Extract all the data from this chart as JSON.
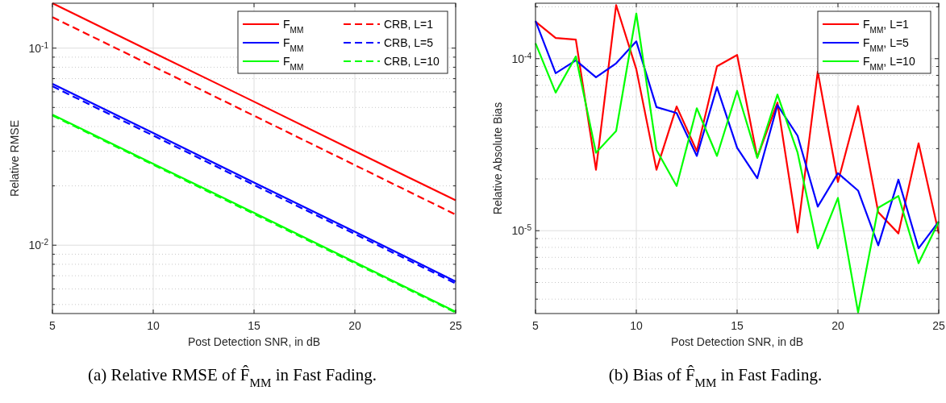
{
  "chart_data": [
    {
      "type": "line",
      "xlabel": "Post Detection SNR, in dB",
      "ylabel": "Relative RMSE",
      "log": "y",
      "grid": true,
      "legend": "top right",
      "xlim": [
        5,
        25
      ],
      "xticks": [
        5,
        10,
        15,
        20,
        25
      ],
      "ylim": [
        0.0045,
        0.169
      ],
      "yticks": [
        {
          "value": 0.005,
          "label": null
        },
        {
          "value": 0.006,
          "label": null
        },
        {
          "value": 0.007,
          "label": null
        },
        {
          "value": 0.008,
          "label": null
        },
        {
          "value": 0.009,
          "label": null
        },
        {
          "value": 0.01,
          "label": "10$^{-2}$"
        },
        {
          "value": 0.02,
          "label": null
        },
        {
          "value": 0.03,
          "label": null
        },
        {
          "value": 0.04,
          "label": null
        },
        {
          "value": 0.05,
          "label": null
        },
        {
          "value": 0.06,
          "label": null
        },
        {
          "value": 0.07,
          "label": null
        },
        {
          "value": 0.08,
          "label": null
        },
        {
          "value": 0.09,
          "label": null
        },
        {
          "value": 0.1,
          "label": "10$^{-1}$"
        }
      ],
      "x": [
        5,
        10,
        15,
        20,
        25
      ],
      "series": [
        {
          "name": "F$_{MM}$",
          "color": "#ff0000",
          "line_style": "solid",
          "values": [
            0.169,
            0.095,
            0.0535,
            0.03,
            0.0169
          ]
        },
        {
          "name": "CRB, L=1",
          "color": "#ff0000",
          "line_style": "dashed",
          "values": [
            0.1436,
            0.0808,
            0.0454,
            0.0255,
            0.0143
          ]
        },
        {
          "name": "F$_{MM}$",
          "color": "#0000ff",
          "line_style": "solid",
          "values": [
            0.0659,
            0.0371,
            0.0208,
            0.0117,
            0.00655
          ]
        },
        {
          "name": "CRB, L=5",
          "color": "#0000ff",
          "line_style": "dashed",
          "values": [
            0.064,
            0.036,
            0.0202,
            0.0114,
            0.0064
          ]
        },
        {
          "name": "F$_{MM}$",
          "color": "#00ff00",
          "line_style": "solid",
          "values": [
            0.046,
            0.0259,
            0.0146,
            0.0082,
            0.0046
          ]
        },
        {
          "name": "CRB, L=10",
          "color": "#00ff00",
          "line_style": "dashed",
          "values": [
            0.0455,
            0.0256,
            0.0144,
            0.0081,
            0.00455
          ]
        }
      ],
      "annotations": [
        "(a) Relative RMSE of F̂$_{MM}$ in Fast Fading."
      ]
    },
    {
      "type": "line",
      "xlabel": "Post Detection SNR, in dB",
      "ylabel": "Relative Absolute Bias",
      "log": "y",
      "grid": true,
      "legend": "top right",
      "xlim": [
        5,
        25
      ],
      "xticks": [
        5,
        10,
        15,
        20,
        25
      ],
      "ylim": [
        3.3e-06,
        0.00021
      ],
      "yticks": [
        {
          "value": 4e-06,
          "label": null
        },
        {
          "value": 5e-06,
          "label": null
        },
        {
          "value": 6e-06,
          "label": null
        },
        {
          "value": 7e-06,
          "label": null
        },
        {
          "value": 8e-06,
          "label": null
        },
        {
          "value": 9e-06,
          "label": null
        },
        {
          "value": 1e-05,
          "label": "10$^{-5}$"
        },
        {
          "value": 2e-05,
          "label": null
        },
        {
          "value": 3e-05,
          "label": null
        },
        {
          "value": 4e-05,
          "label": null
        },
        {
          "value": 5e-05,
          "label": null
        },
        {
          "value": 6e-05,
          "label": null
        },
        {
          "value": 7e-05,
          "label": null
        },
        {
          "value": 8e-05,
          "label": null
        },
        {
          "value": 9e-05,
          "label": null
        },
        {
          "value": 0.0001,
          "label": "10$^{-4}$"
        },
        {
          "value": 0.0002,
          "label": null
        }
      ],
      "x": [
        5,
        6,
        7,
        8,
        9,
        10,
        11,
        12,
        13,
        14,
        15,
        16,
        17,
        18,
        19,
        20,
        21,
        22,
        23,
        24,
        25
      ],
      "series": [
        {
          "name": "F$_{MM}$, L=1",
          "color": "#ff0000",
          "values": [
            0.000164,
            0.000132,
            0.000129,
            2.26e-05,
            0.000205,
            8.68e-05,
            2.26e-05,
            5.27e-05,
            2.9e-05,
            9.03e-05,
            0.000105,
            2.67e-05,
            5.55e-05,
            9.77e-06,
            8.4e-05,
            1.92e-05,
            5.31e-05,
            1.28e-05,
            9.64e-06,
            3.22e-05,
            9.64e-06
          ]
        },
        {
          "name": "F$_{MM}$, L=5",
          "color": "#0000ff",
          "values": [
            0.000166,
            8.23e-05,
            9.77e-05,
            7.79e-05,
            9.39e-05,
            0.000126,
            5.23e-05,
            4.83e-05,
            2.72e-05,
            6.83e-05,
            3.03e-05,
            2.02e-05,
            5.37e-05,
            3.56e-05,
            1.38e-05,
            2.16e-05,
            1.71e-05,
            8.22e-06,
            1.98e-05,
            7.89e-06,
            1.13e-05
          ]
        },
        {
          "name": "F$_{MM}$, L=10",
          "color": "#00ff00",
          "values": [
            0.000123,
            6.35e-05,
            0.000103,
            2.84e-05,
            3.8e-05,
            0.000183,
            2.95e-05,
            1.82e-05,
            5.15e-05,
            2.72e-05,
            6.5e-05,
            2.65e-05,
            6.18e-05,
            2.84e-05,
            7.89e-06,
            1.55e-05,
            3.35e-06,
            1.36e-05,
            1.59e-05,
            6.47e-06,
            1.13e-05
          ]
        }
      ],
      "annotations": [
        "(b) Bias of F̂$_{MM}$ in Fast Fading."
      ]
    }
  ]
}
